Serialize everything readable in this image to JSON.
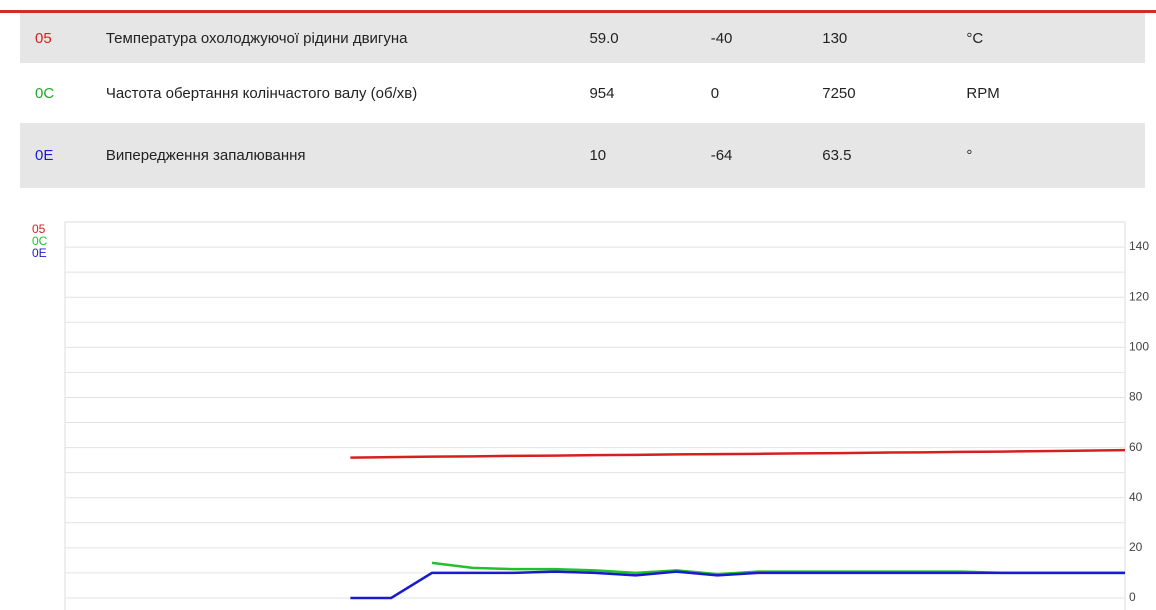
{
  "table": {
    "rows": [
      [
        "05",
        "Температура охолоджуючої рідини двигуна",
        "59.0",
        "-40",
        "130",
        "°C"
      ],
      [
        "0C",
        "Частота обертання колінчастого валу (об/хв)",
        "954",
        "0",
        "7250",
        "RPM"
      ],
      [
        "0E",
        "Випередження запалювання",
        "10",
        "-64",
        "63.5",
        "°"
      ]
    ]
  },
  "chart_data": {
    "type": "line",
    "categories": [
      null,
      null,
      null,
      null,
      null,
      null,
      null,
      null,
      null,
      null,
      null,
      null,
      null,
      null,
      null,
      null,
      null,
      null,
      null,
      null,
      null,
      null,
      null,
      null,
      null,
      null,
      null
    ],
    "series": [
      {
        "name": "05",
        "color": "#d62020",
        "values": [
          null,
          null,
          null,
          null,
          null,
          null,
          null,
          56,
          56.2,
          56.4,
          56.5,
          56.7,
          56.8,
          57,
          57.1,
          57.3,
          57.4,
          57.5,
          57.7,
          57.8,
          58,
          58.1,
          58.3,
          58.4,
          58.6,
          58.8,
          59
        ]
      },
      {
        "name": "0C",
        "color": "#22c02a",
        "values": [
          null,
          null,
          null,
          null,
          null,
          null,
          null,
          null,
          null,
          14,
          12,
          11.5,
          11.5,
          11,
          10,
          11,
          9.5,
          10.5,
          10.5,
          10.5,
          10.5,
          10.5,
          10.5,
          10,
          10,
          10,
          10
        ]
      },
      {
        "name": "0E",
        "color": "#1a1ad0",
        "values": [
          null,
          null,
          null,
          null,
          null,
          null,
          null,
          0,
          0,
          10,
          10,
          10,
          10.5,
          10,
          9,
          10.5,
          9,
          10,
          10,
          10,
          10,
          10,
          10,
          10,
          10,
          10,
          10
        ]
      }
    ],
    "ylim": [
      -4,
      150
    ],
    "yticks": [
      0,
      20,
      40,
      60,
      80,
      100,
      120,
      140
    ],
    "y_minor_ticks": [
      10,
      30,
      50,
      70,
      90,
      110,
      130
    ],
    "grid": true
  }
}
